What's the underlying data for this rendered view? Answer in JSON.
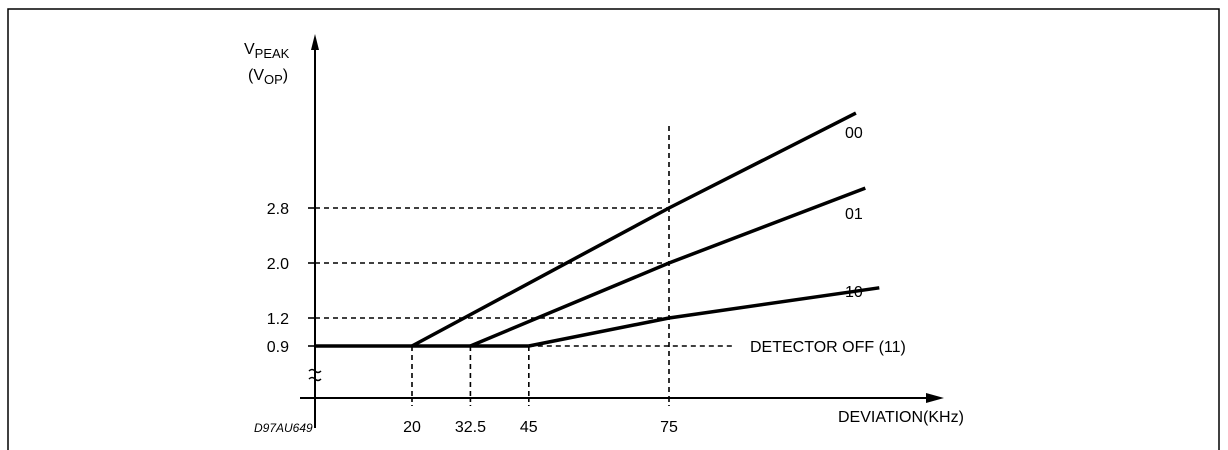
{
  "chart_data": {
    "type": "line",
    "ylabel_main": "V",
    "ylabel_main_sub": "PEAK",
    "ylabel_paren_open": "(V",
    "ylabel_paren_sub": "OP",
    "ylabel_paren_close": ")",
    "xlabel": "DEVIATION(KHz)",
    "figure_id": "D97AU649",
    "x_ticks": [
      "20",
      "32.5",
      "45",
      "75"
    ],
    "y_ticks": [
      "0.9",
      "1.2",
      "2.0",
      "2.8"
    ],
    "series": [
      {
        "name": "00",
        "points": [
          [
            20,
            0.9
          ],
          [
            75,
            2.8
          ],
          [
            115,
            4.18
          ]
        ]
      },
      {
        "name": "01",
        "points": [
          [
            32.5,
            0.9
          ],
          [
            75,
            2.0
          ],
          [
            117,
            3.09
          ]
        ]
      },
      {
        "name": "10",
        "points": [
          [
            45,
            0.9
          ],
          [
            75,
            1.2
          ],
          [
            120,
            1.64
          ]
        ]
      },
      {
        "name": "DETECTOR OFF (11)",
        "points": [
          [
            0,
            0.9
          ],
          [
            45,
            0.9
          ]
        ]
      }
    ],
    "grid": "dashed guide lines at tick values",
    "legend": "inline labels next to lines"
  }
}
